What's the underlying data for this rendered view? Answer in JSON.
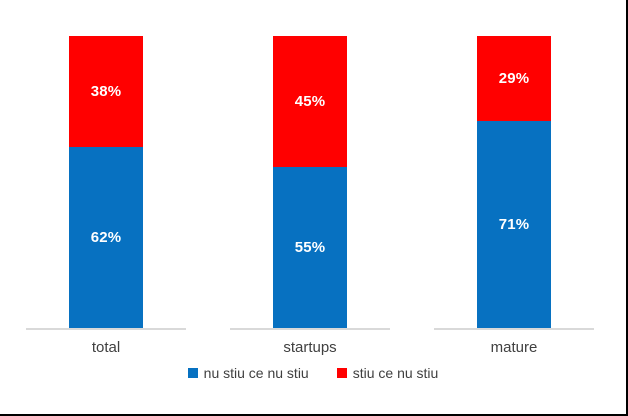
{
  "chart_data": {
    "type": "bar",
    "stacked": true,
    "orientation": "vertical",
    "title": "",
    "categories": [
      "total",
      "startups",
      "mature"
    ],
    "series": [
      {
        "name": "nu stiu ce nu stiu",
        "color": "#0771C1",
        "values": [
          62,
          55,
          71
        ],
        "data_labels": [
          "62%",
          "55%",
          "71%"
        ]
      },
      {
        "name": "stiu ce nu stiu",
        "color": "#FF0000",
        "values": [
          38,
          45,
          29
        ],
        "data_labels": [
          "38%",
          "45%",
          "29%"
        ]
      }
    ],
    "ylim": [
      0,
      100
    ],
    "unit": "%",
    "grid": false,
    "y_axis_visible": false,
    "legend_position": "bottom",
    "data_label_color": "#FFFFFF",
    "axis_line_color": "#D9D9D9",
    "category_label_color": "#404040"
  }
}
